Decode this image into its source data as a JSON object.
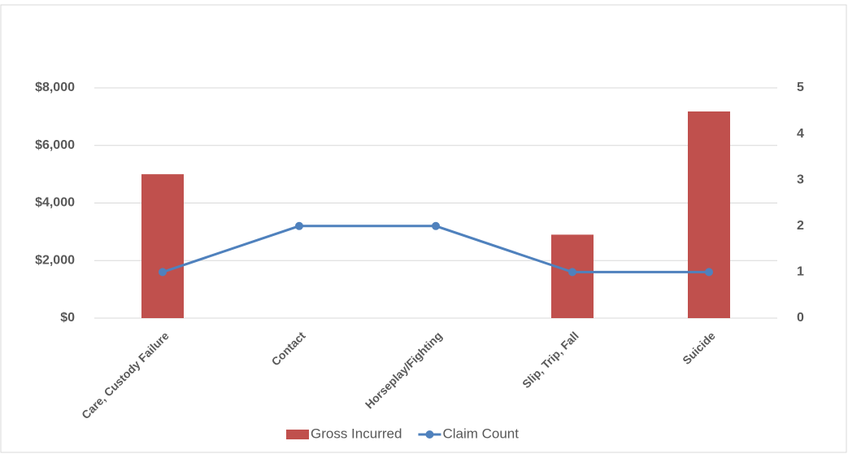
{
  "chart_data": {
    "type": "bar-line",
    "categories": [
      "Care, Custody Failure",
      "Contact",
      "Horseplay/Fighting",
      "Slip, Trip, Fall",
      "Suicide"
    ],
    "series": [
      {
        "name": "Gross Incurred",
        "type": "bar",
        "color": "#c0504d",
        "values": [
          5000,
          0,
          0,
          2900,
          7180
        ]
      },
      {
        "name": "Claim Count",
        "type": "line",
        "axis": "y2",
        "color": "#4f81bd",
        "values": [
          1,
          2,
          2,
          1,
          1
        ]
      }
    ],
    "ylim": [
      0,
      8000
    ],
    "yticks": [
      {
        "value": 0,
        "label": "$0"
      },
      {
        "value": 2000,
        "label": "$2,000"
      },
      {
        "value": 4000,
        "label": "$4,000"
      },
      {
        "value": 6000,
        "label": "$6,000"
      },
      {
        "value": 8000,
        "label": "$8,000"
      }
    ],
    "y2lim": [
      0,
      5
    ],
    "y2ticks": [
      0,
      1,
      2,
      3,
      4,
      5
    ],
    "grid": true,
    "legend": "bottom"
  }
}
